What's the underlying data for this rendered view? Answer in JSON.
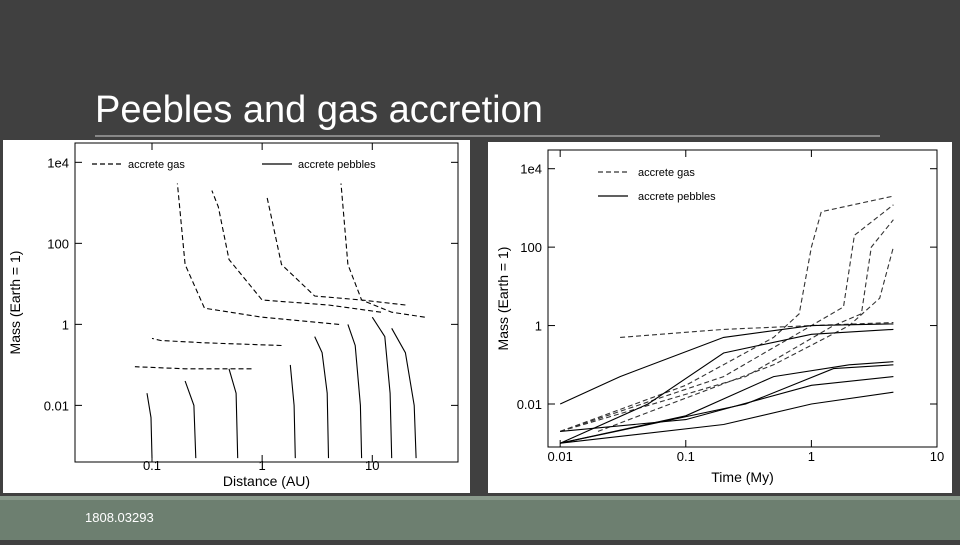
{
  "slide": {
    "title": "Peebles and gas accretion",
    "footer": "1808.03293"
  },
  "chart_data": [
    {
      "type": "line",
      "xlabel": "Distance (AU)",
      "ylabel": "Mass (Earth = 1)",
      "xscale": "log",
      "yscale": "log",
      "xlim": [
        0.02,
        60
      ],
      "ylim": [
        0.0004,
        30000
      ],
      "xticks": [
        0.1,
        1,
        10
      ],
      "yticks": [
        {
          "value": 10000,
          "label": "1e4"
        },
        100,
        1,
        0.01
      ],
      "legend": "row",
      "series": [
        {
          "name": "accrete gas",
          "color": "#000000",
          "dash": "5,3",
          "lines": [
            {
              "x": [
                30,
                15,
                8,
                6,
                5.5,
                5.2
              ],
              "y": [
                1.5,
                2,
                4,
                30,
                500,
                3000
              ]
            },
            {
              "x": [
                20,
                8,
                3,
                1.5,
                1.2,
                1.1
              ],
              "y": [
                3,
                4,
                5,
                30,
                500,
                1500
              ]
            },
            {
              "x": [
                12,
                4,
                1,
                0.5,
                0.4,
                0.35
              ],
              "y": [
                2,
                3,
                4,
                40,
                800,
                2000
              ]
            },
            {
              "x": [
                5,
                1,
                0.3,
                0.2,
                0.18,
                0.17
              ],
              "y": [
                1,
                1.5,
                2.5,
                30,
                600,
                3000
              ]
            },
            {
              "x": [
                1.5,
                0.3,
                0.12,
                0.1
              ],
              "y": [
                0.3,
                0.35,
                0.4,
                0.45
              ]
            },
            {
              "x": [
                0.8,
                0.2,
                0.07
              ],
              "y": [
                0.08,
                0.08,
                0.09
              ]
            }
          ]
        },
        {
          "name": "accrete pebbles",
          "color": "#000000",
          "dash": "none",
          "lines": [
            {
              "x": [
                25,
                24,
                20,
                15
              ],
              "y": [
                0.0005,
                0.01,
                0.2,
                0.8
              ]
            },
            {
              "x": [
                15,
                14.5,
                13,
                10
              ],
              "y": [
                0.0005,
                0.02,
                0.5,
                1.5
              ]
            },
            {
              "x": [
                8,
                7.8,
                7,
                6
              ],
              "y": [
                0.0005,
                0.01,
                0.3,
                1
              ]
            },
            {
              "x": [
                4,
                3.9,
                3.5,
                3
              ],
              "y": [
                0.0005,
                0.02,
                0.2,
                0.5
              ]
            },
            {
              "x": [
                2,
                1.95,
                1.8
              ],
              "y": [
                0.0005,
                0.01,
                0.1
              ]
            },
            {
              "x": [
                0.6,
                0.58,
                0.5
              ],
              "y": [
                0.0005,
                0.02,
                0.08
              ]
            },
            {
              "x": [
                0.25,
                0.24,
                0.2
              ],
              "y": [
                0.0005,
                0.01,
                0.04
              ]
            },
            {
              "x": [
                0.1,
                0.098,
                0.09
              ],
              "y": [
                0.0005,
                0.005,
                0.02
              ]
            }
          ]
        }
      ]
    },
    {
      "type": "line",
      "xlabel": "Time (My)",
      "ylabel": "Mass (Earth = 1)",
      "xscale": "log",
      "yscale": "log",
      "xlim": [
        0.008,
        10
      ],
      "ylim": [
        0.0008,
        30000
      ],
      "xticks": [
        0.01,
        0.1,
        1,
        10
      ],
      "yticks": [
        {
          "value": 10000,
          "label": "1e4"
        },
        100,
        1,
        0.01
      ],
      "legend": "column",
      "series": [
        {
          "name": "accrete gas",
          "color": "#333333",
          "dash": "5,3",
          "lines": [
            {
              "x": [
                0.01,
                0.1,
                0.5,
                0.8,
                1,
                1.2,
                4.5
              ],
              "y": [
                0.002,
                0.03,
                0.5,
                2,
                100,
                800,
                2000
              ]
            },
            {
              "x": [
                0.01,
                0.2,
                1,
                1.8,
                2.2,
                4.5
              ],
              "y": [
                0.002,
                0.05,
                1,
                3,
                200,
                1200
              ]
            },
            {
              "x": [
                0.01,
                0.3,
                1.5,
                2.5,
                3,
                4.5
              ],
              "y": [
                0.002,
                0.05,
                1,
                2,
                100,
                500
              ]
            },
            {
              "x": [
                0.02,
                0.5,
                2,
                3.5,
                4.5
              ],
              "y": [
                0.002,
                0.1,
                1,
                5,
                100
              ]
            },
            {
              "x": [
                0.03,
                0.2,
                1,
                4.5
              ],
              "y": [
                0.5,
                0.8,
                1,
                1.2
              ]
            }
          ]
        },
        {
          "name": "accrete pebbles",
          "color": "#000000",
          "dash": "none",
          "lines": [
            {
              "x": [
                0.01,
                0.05,
                0.2,
                1,
                4.5
              ],
              "y": [
                0.001,
                0.01,
                0.2,
                0.6,
                0.8
              ]
            },
            {
              "x": [
                0.01,
                0.1,
                0.5,
                2,
                4.5
              ],
              "y": [
                0.001,
                0.005,
                0.05,
                0.1,
                0.12
              ]
            },
            {
              "x": [
                0.01,
                0.2,
                1,
                4.5
              ],
              "y": [
                0.001,
                0.003,
                0.01,
                0.02
              ]
            },
            {
              "x": [
                0.01,
                0.03,
                0.2,
                1,
                4.5
              ],
              "y": [
                0.01,
                0.05,
                0.5,
                1,
                1.1
              ]
            },
            {
              "x": [
                0.01,
                0.3,
                1.5,
                4.5
              ],
              "y": [
                0.001,
                0.01,
                0.08,
                0.1
              ]
            },
            {
              "x": [
                0.01,
                0.1,
                1,
                4.5
              ],
              "y": [
                0.002,
                0.004,
                0.03,
                0.05
              ]
            }
          ]
        }
      ]
    }
  ]
}
